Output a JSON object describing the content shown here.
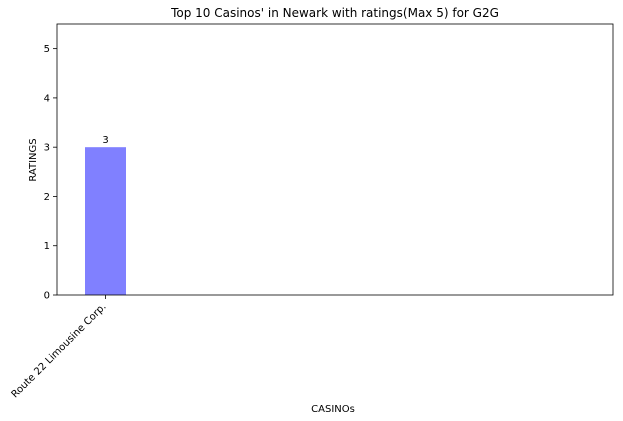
{
  "chart_data": {
    "type": "bar",
    "title": "Top 10 Casinos' in Newark with ratings(Max 5) for G2G",
    "xlabel": "CASINOs",
    "ylabel": "RATINGS",
    "categories": [
      "Route 22 Limousine Corp."
    ],
    "values": [
      3
    ],
    "data_labels": [
      "3"
    ],
    "ylim": [
      0,
      5.5
    ],
    "yticks": [
      "0",
      "1",
      "2",
      "3",
      "4",
      "5"
    ],
    "bar_color": "#8080ff",
    "grid": false,
    "legend": "none"
  }
}
